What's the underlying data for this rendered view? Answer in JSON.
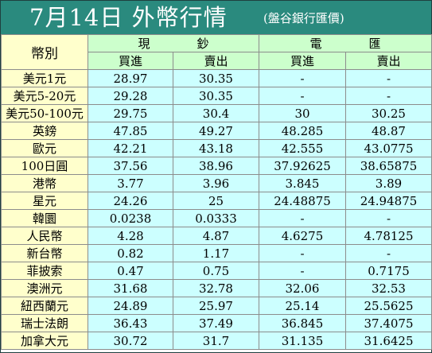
{
  "title": {
    "main": "7月14日 外幣行情",
    "subtitle": "(盤谷銀行匯價)"
  },
  "table": {
    "currency_header": "幣別",
    "groups": [
      {
        "chars": [
          "現",
          "鈔"
        ]
      },
      {
        "chars": [
          "電",
          "匯"
        ]
      }
    ],
    "subheaders": [
      "買進",
      "賣出",
      "買進",
      "賣出"
    ],
    "rows": [
      [
        "美元1元",
        "28.97",
        "30.35",
        "-",
        "-"
      ],
      [
        "美元5-20元",
        "29.28",
        "30.35",
        "-",
        "-"
      ],
      [
        "美元50-100元",
        "29.75",
        "30.4",
        "30",
        "30.25"
      ],
      [
        "英鎊",
        "47.85",
        "49.27",
        "48.285",
        "48.87"
      ],
      [
        "歐元",
        "42.21",
        "43.18",
        "42.555",
        "43.0775"
      ],
      [
        "100日圓",
        "37.56",
        "38.96",
        "37.92625",
        "38.65875"
      ],
      [
        "港幣",
        "3.77",
        "3.96",
        "3.845",
        "3.89"
      ],
      [
        "星元",
        "24.26",
        "25",
        "24.48875",
        "24.94875"
      ],
      [
        "韓圜",
        "0.0238",
        "0.0333",
        "-",
        "-"
      ],
      [
        "人民幣",
        "4.28",
        "4.87",
        "4.6275",
        "4.78125"
      ],
      [
        "新台幣",
        "0.82",
        "1.17",
        "-",
        "-"
      ],
      [
        "菲披索",
        "0.47",
        "0.75",
        "-",
        "0.7175"
      ],
      [
        "澳洲元",
        "31.68",
        "32.78",
        "32.06",
        "32.53"
      ],
      [
        "紐西蘭元",
        "24.89",
        "25.97",
        "25.14",
        "25.5625"
      ],
      [
        "瑞士法朗",
        "36.43",
        "37.49",
        "36.845",
        "37.4075"
      ],
      [
        "加拿大元",
        "30.72",
        "31.7",
        "31.135",
        "31.6425"
      ]
    ]
  },
  "colors": {
    "title_bg": "#2a8a7e",
    "title_text": "#ffffff",
    "currency_bg": "#ffffcc",
    "header_bg": "#ccffcc",
    "value_bg": "#ccffff",
    "grid": "#8c8c8c"
  }
}
